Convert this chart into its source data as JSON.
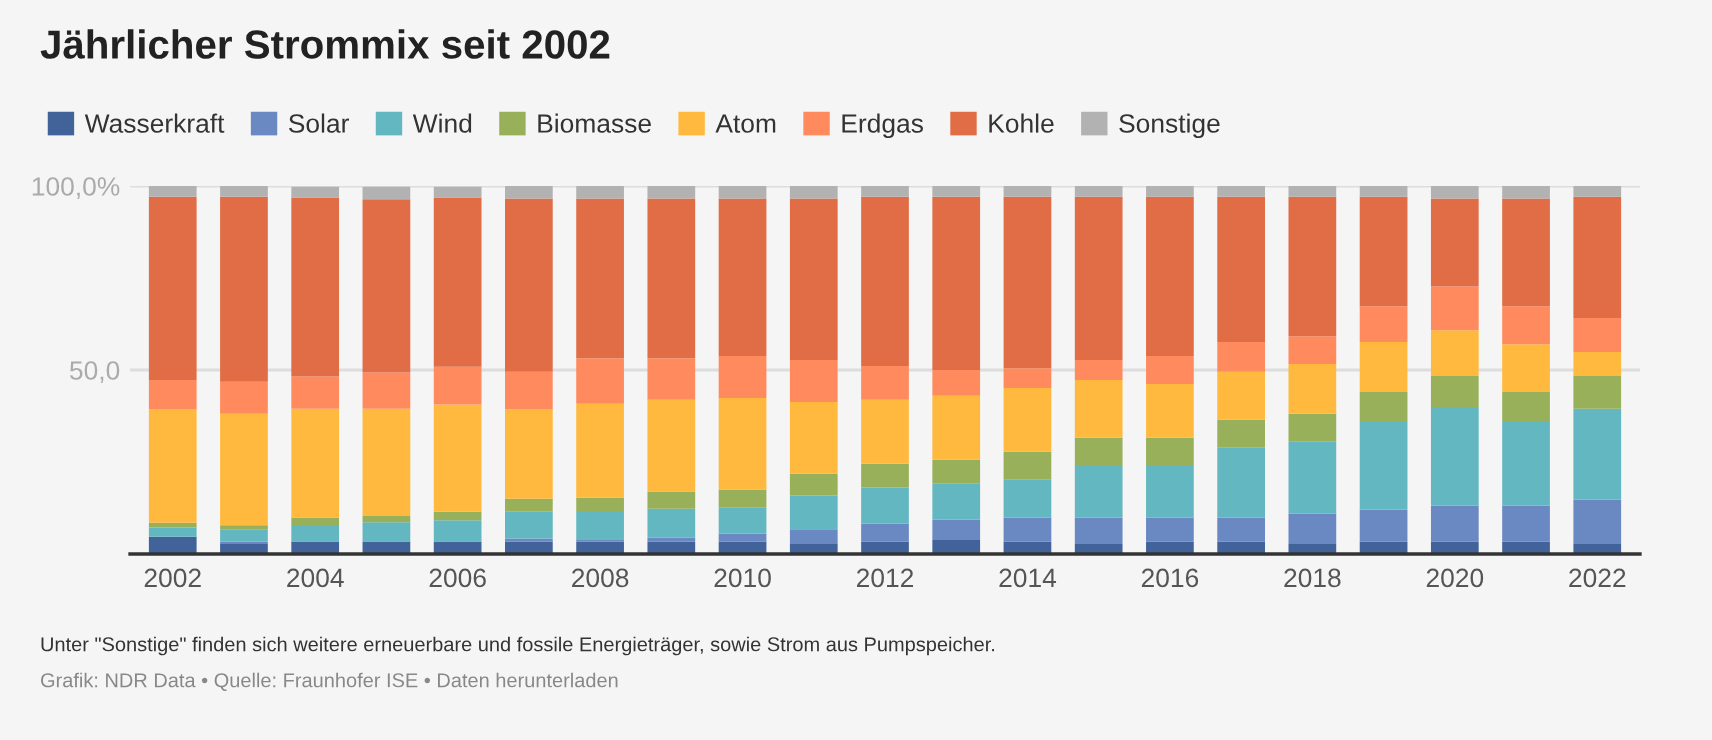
{
  "chart_data": {
    "type": "bar",
    "title": "Jährlicher Strommix seit 2002",
    "categories": [
      "2002",
      null,
      "2004",
      null,
      "2006",
      null,
      "2008",
      null,
      "2010",
      null,
      "2012",
      null,
      "2014",
      null,
      "2016",
      null,
      "2018",
      null,
      "2020",
      null,
      "2022"
    ],
    "stacked": true,
    "series": [
      {
        "name": "Wasserkraft",
        "color": "#41639a",
        "values": [
          4.7,
          2.9,
          3.4,
          3.4,
          3.4,
          3.4,
          3.4,
          3.4,
          3.4,
          2.9,
          3.4,
          4.0,
          3.4,
          2.9,
          3.4,
          3.4,
          2.9,
          3.4,
          3.4,
          3.4,
          2.9
        ]
      },
      {
        "name": "Solar",
        "color": "#6a88c2",
        "values": [
          0,
          0.5,
          null,
          null,
          null,
          0.8,
          0.6,
          1.1,
          2.2,
          3.8,
          4.9,
          5.4,
          6.5,
          7.0,
          6.5,
          6.5,
          8.1,
          8.7,
          9.8,
          9.8,
          11.9
        ]
      },
      {
        "name": "Wind",
        "color": "#63b7c0",
        "values": [
          2.5,
          3.3,
          4.5,
          5.2,
          5.8,
          7.4,
          7.4,
          7.8,
          7.0,
          9.2,
          9.8,
          9.7,
          10.3,
          14.3,
          14.3,
          19.0,
          19.5,
          23.8,
          26.5,
          22.7,
          24.7
        ]
      },
      {
        "name": "Biomasse",
        "color": "#98b05a",
        "values": [
          1.3,
          1.1,
          2.0,
          1.7,
          2.3,
          3.4,
          3.9,
          4.7,
          4.9,
          5.9,
          6.4,
          6.5,
          7.6,
          7.4,
          7.4,
          7.6,
          7.6,
          8.1,
          8.7,
          8.1,
          8.9
        ]
      },
      {
        "name": "Atom",
        "color": "#ffb93f",
        "values": [
          30.9,
          30.3,
          29.6,
          29.2,
          29.1,
          24.4,
          25.5,
          24.9,
          24.9,
          19.5,
          17.4,
          17.4,
          17.3,
          15.7,
          14.6,
          13.0,
          13.5,
          13.6,
          12.4,
          13.0,
          6.5
        ]
      },
      {
        "name": "Erdgas",
        "color": "#ff8a5e",
        "values": [
          7.9,
          8.7,
          8.7,
          9.8,
          10.3,
          10.1,
          12.4,
          11.3,
          11.4,
          11.4,
          9.2,
          7.0,
          5.4,
          5.4,
          7.6,
          8.1,
          7.6,
          9.7,
          11.9,
          10.3,
          9.2
        ]
      },
      {
        "name": "Kohle",
        "color": "#e06d45",
        "values": [
          49.8,
          50.3,
          48.7,
          47.1,
          46.0,
          47.1,
          43.4,
          43.4,
          42.8,
          43.9,
          46.0,
          47.1,
          46.6,
          44.4,
          43.3,
          39.5,
          37.9,
          29.8,
          23.9,
          29.3,
          33.0
        ]
      },
      {
        "name": "Sonstige",
        "color": "#b2b2b2",
        "values": [
          2.9,
          2.9,
          2.9,
          3.4,
          2.9,
          3.4,
          3.4,
          3.4,
          3.4,
          3.4,
          2.9,
          2.9,
          2.9,
          2.9,
          2.9,
          2.9,
          2.9,
          2.9,
          3.4,
          3.4,
          2.9
        ]
      }
    ],
    "ylim": [
      0,
      100
    ],
    "yticks": [
      {
        "value": 50,
        "label": "50,0"
      },
      {
        "value": 100,
        "label": "100,0%"
      }
    ],
    "grid": "y",
    "legend": "top left",
    "annotations": [
      "Unter \"Sonstige\" finden sich weitere erneuerbare und fossile Energieträger, sowie Strom aus Pumpspeicher.",
      "Grafik: NDR Data • Quelle: Fraunhofer ISE • Daten herunterladen"
    ]
  }
}
